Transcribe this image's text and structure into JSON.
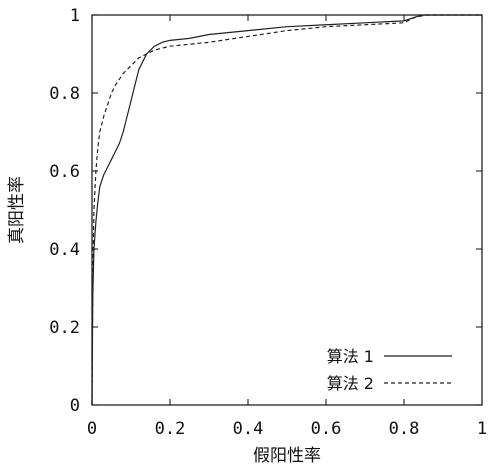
{
  "chart_data": {
    "type": "line",
    "title": "",
    "xlabel": "假阳性率",
    "ylabel": "真阳性率",
    "xlim": [
      0,
      1
    ],
    "ylim": [
      0,
      1
    ],
    "xticks": [
      {
        "value": 0,
        "label": "0"
      },
      {
        "value": 0.2,
        "label": "0.2"
      },
      {
        "value": 0.4,
        "label": "0.4"
      },
      {
        "value": 0.6,
        "label": "0.6"
      },
      {
        "value": 0.8,
        "label": "0.8"
      },
      {
        "value": 1,
        "label": "1"
      }
    ],
    "yticks": [
      {
        "value": 0,
        "label": "0"
      },
      {
        "value": 0.2,
        "label": "0.2"
      },
      {
        "value": 0.4,
        "label": "0.4"
      },
      {
        "value": 0.6,
        "label": "0.6"
      },
      {
        "value": 0.8,
        "label": "0.8"
      },
      {
        "value": 1,
        "label": "1"
      }
    ],
    "grid": false,
    "legend_position": "bottom-right",
    "series": [
      {
        "name": "算法 1",
        "style": "solid",
        "color": "#222222",
        "points": [
          [
            0,
            0
          ],
          [
            0.002,
            0.28
          ],
          [
            0.005,
            0.4
          ],
          [
            0.01,
            0.47
          ],
          [
            0.015,
            0.52
          ],
          [
            0.02,
            0.56
          ],
          [
            0.03,
            0.59
          ],
          [
            0.04,
            0.61
          ],
          [
            0.05,
            0.63
          ],
          [
            0.06,
            0.65
          ],
          [
            0.07,
            0.67
          ],
          [
            0.08,
            0.7
          ],
          [
            0.09,
            0.74
          ],
          [
            0.1,
            0.78
          ],
          [
            0.11,
            0.82
          ],
          [
            0.12,
            0.86
          ],
          [
            0.13,
            0.88
          ],
          [
            0.14,
            0.9
          ],
          [
            0.15,
            0.91
          ],
          [
            0.16,
            0.92
          ],
          [
            0.18,
            0.93
          ],
          [
            0.2,
            0.935
          ],
          [
            0.25,
            0.94
          ],
          [
            0.3,
            0.95
          ],
          [
            0.4,
            0.96
          ],
          [
            0.5,
            0.97
          ],
          [
            0.6,
            0.975
          ],
          [
            0.7,
            0.98
          ],
          [
            0.8,
            0.985
          ],
          [
            0.83,
            0.995
          ],
          [
            0.85,
            1.0
          ],
          [
            1,
            1
          ]
        ]
      },
      {
        "name": "算法 2",
        "style": "dashed",
        "color": "#222222",
        "points": [
          [
            0,
            0
          ],
          [
            0.002,
            0.35
          ],
          [
            0.005,
            0.5
          ],
          [
            0.01,
            0.6
          ],
          [
            0.015,
            0.66
          ],
          [
            0.02,
            0.7
          ],
          [
            0.03,
            0.74
          ],
          [
            0.04,
            0.77
          ],
          [
            0.05,
            0.8
          ],
          [
            0.06,
            0.82
          ],
          [
            0.08,
            0.85
          ],
          [
            0.1,
            0.87
          ],
          [
            0.12,
            0.89
          ],
          [
            0.14,
            0.9
          ],
          [
            0.16,
            0.91
          ],
          [
            0.18,
            0.915
          ],
          [
            0.2,
            0.92
          ],
          [
            0.25,
            0.925
          ],
          [
            0.3,
            0.93
          ],
          [
            0.4,
            0.945
          ],
          [
            0.5,
            0.96
          ],
          [
            0.6,
            0.97
          ],
          [
            0.7,
            0.975
          ],
          [
            0.8,
            0.98
          ],
          [
            0.83,
            0.995
          ],
          [
            0.86,
            1.0
          ],
          [
            1,
            1
          ]
        ]
      }
    ]
  }
}
